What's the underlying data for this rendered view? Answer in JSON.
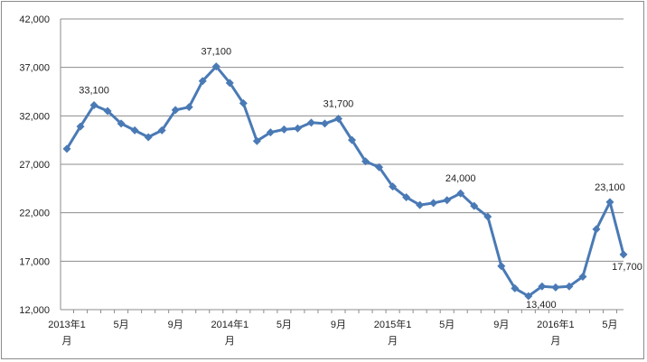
{
  "chart_data": {
    "type": "line",
    "title": "",
    "xlabel": "",
    "ylabel": "",
    "ylim": [
      12000,
      42000
    ],
    "yticks": [
      "12,000",
      "17,000",
      "22,000",
      "27,000",
      "32,000",
      "37,000",
      "42,000"
    ],
    "grid": "horizontal",
    "legend": "none",
    "colors": {
      "line": "#4a7ab5",
      "grid": "#8c8c8c",
      "axis": "#8c8c8c"
    },
    "x_tick_labels": [
      {
        "index": 0,
        "lines": [
          "2013年1",
          "月"
        ]
      },
      {
        "index": 4,
        "lines": [
          "5月"
        ]
      },
      {
        "index": 8,
        "lines": [
          "9月"
        ]
      },
      {
        "index": 12,
        "lines": [
          "2014年1",
          "月"
        ]
      },
      {
        "index": 16,
        "lines": [
          "5月"
        ]
      },
      {
        "index": 20,
        "lines": [
          "9月"
        ]
      },
      {
        "index": 24,
        "lines": [
          "2015年1",
          "月"
        ]
      },
      {
        "index": 28,
        "lines": [
          "5月"
        ]
      },
      {
        "index": 32,
        "lines": [
          "9月"
        ]
      },
      {
        "index": 36,
        "lines": [
          "2016年1",
          "月"
        ]
      },
      {
        "index": 40,
        "lines": [
          "5月"
        ]
      }
    ],
    "series": [
      {
        "values": [
          28600,
          30900,
          33100,
          32500,
          31200,
          30500,
          29800,
          30500,
          32600,
          32900,
          35600,
          37100,
          35400,
          33300,
          29400,
          30300,
          30600,
          30700,
          31300,
          31200,
          31700,
          29500,
          27300,
          26700,
          24700,
          23600,
          22800,
          23000,
          23300,
          24000,
          22700,
          21600,
          16500,
          14200,
          13400,
          14400,
          14300,
          14400,
          15400,
          20300,
          23100,
          17700
        ]
      }
    ],
    "data_labels": [
      {
        "index": 2,
        "text": "33,100",
        "pos": "above"
      },
      {
        "index": 11,
        "text": "37,100",
        "pos": "above"
      },
      {
        "index": 20,
        "text": "31,700",
        "pos": "above"
      },
      {
        "index": 29,
        "text": "24,000",
        "pos": "above"
      },
      {
        "index": 34,
        "text": "13,400",
        "pos": "below-right"
      },
      {
        "index": 40,
        "text": "23,100",
        "pos": "above"
      },
      {
        "index": 41,
        "text": "17,700",
        "pos": "below"
      }
    ]
  }
}
